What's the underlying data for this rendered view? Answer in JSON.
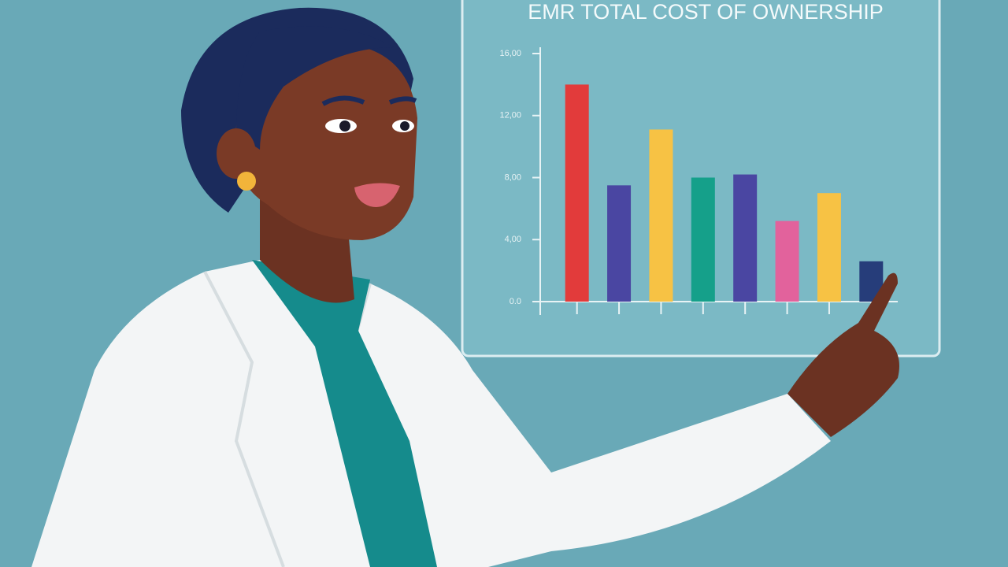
{
  "chart_data": {
    "type": "bar",
    "title": "EMR TOTAL COST OF OWNERSHIP",
    "categories": [
      null,
      null,
      null,
      null,
      null,
      null,
      null,
      null
    ],
    "values": [
      1400,
      750,
      1110,
      800,
      820,
      520,
      700,
      260
    ],
    "colors": [
      "#e23b3b",
      "#4a46a2",
      "#f7c244",
      "#15a08a",
      "#4a46a2",
      "#e2629c",
      "#f7c244",
      "#263d7a"
    ],
    "ylim": [
      0,
      1600
    ],
    "yticks": [
      {
        "value": 0,
        "label": "0.0"
      },
      {
        "value": 400,
        "label": "4,00"
      },
      {
        "value": 800,
        "label": "8,00"
      },
      {
        "value": 1200,
        "label": "12,00"
      },
      {
        "value": 1600,
        "label": "16,00"
      }
    ],
    "grid": false
  }
}
